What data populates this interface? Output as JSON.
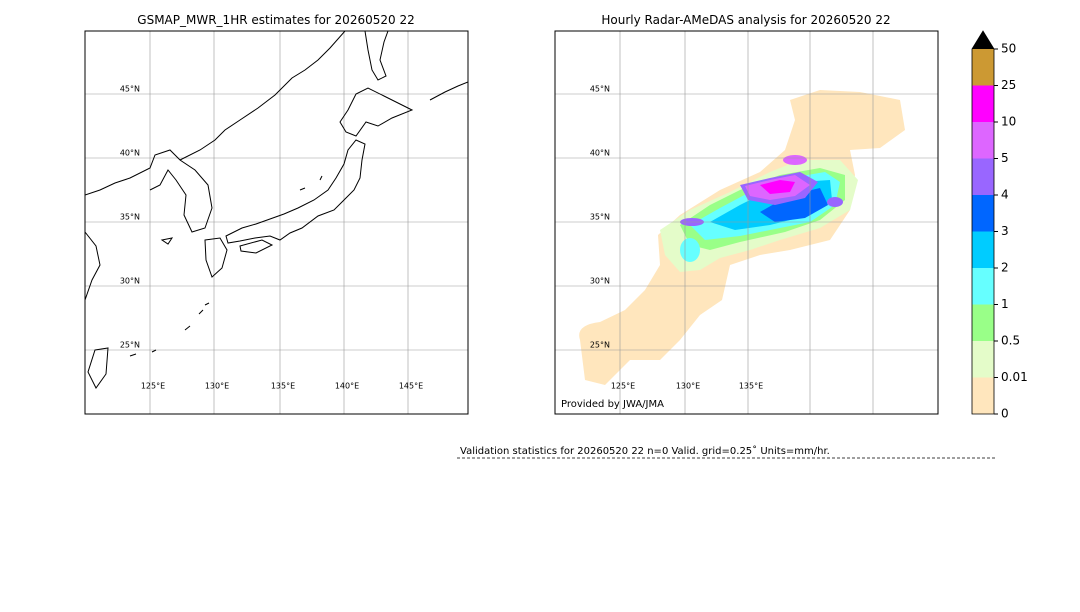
{
  "left_map": {
    "title": "GSMAP_MWR_1HR estimates for 20260520 22",
    "lat_labels": [
      "45°N",
      "40°N",
      "35°N",
      "30°N",
      "25°N"
    ],
    "lon_labels": [
      "125°E",
      "130°E",
      "135°E",
      "140°E",
      "145°E"
    ]
  },
  "right_map": {
    "title": "Hourly Radar-AMeDAS analysis for 20260520 22",
    "lat_labels": [
      "45°N",
      "40°N",
      "35°N",
      "30°N",
      "25°N"
    ],
    "lon_labels": [
      "125°E",
      "130°E",
      "135°E"
    ],
    "credit": "Provided by JWA/JMA"
  },
  "colorbar": {
    "ticks": [
      "0",
      "0.01",
      "0.5",
      "1",
      "2",
      "3",
      "4",
      "5",
      "10",
      "25",
      "50"
    ],
    "colors": [
      "#ffe6bd",
      "#e4fcc9",
      "#99ff88",
      "#66ffff",
      "#00ccff",
      "#0066ff",
      "#9966ff",
      "#dd66ff",
      "#ff00ff",
      "#cc9933"
    ],
    "extend_color": "#000000"
  },
  "footer": "Validation statistics for 20260520 22  n=0 Valid. grid=0.25˚ Units=mm/hr."
}
